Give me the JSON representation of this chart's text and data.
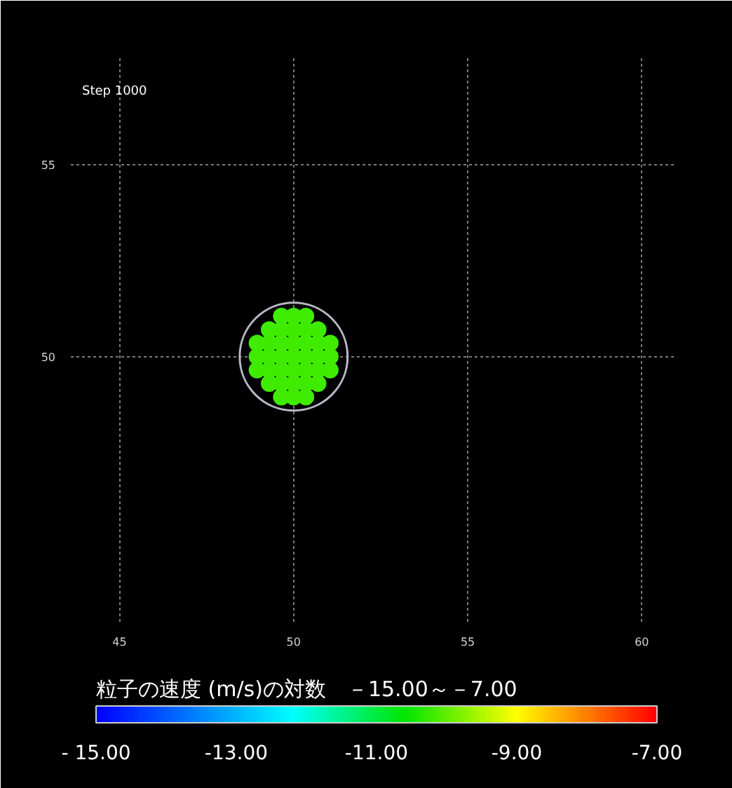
{
  "chart_data": {
    "type": "scatter",
    "annotations": [
      "Step 1000"
    ],
    "clabel": "粒子の速度 (m/s)の対数　－15.00～－7.00",
    "clim": [
      -15,
      -7
    ],
    "cticks": [
      {
        "value": -15,
        "label": "- 15.00"
      },
      {
        "value": -13,
        "label": "-13.00"
      },
      {
        "value": -11,
        "label": "-11.00"
      },
      {
        "value": -9,
        "label": "-9.00"
      },
      {
        "value": -7,
        "label": "-7.00"
      }
    ],
    "xlim": [
      43.6,
      61
    ],
    "ylim": [
      43.1,
      57.8
    ],
    "xticks": [
      45,
      50,
      55,
      60
    ],
    "yticks": [
      50,
      55
    ],
    "grid": true,
    "marker": "circle",
    "series": [
      {
        "x": [
          48.95,
          49.3,
          49.65,
          50,
          50.35,
          50.7,
          51.05,
          48.95,
          49.3,
          49.65,
          50,
          50.35,
          50.7,
          51.05,
          48.95,
          49.3,
          49.65,
          50,
          50.35,
          50.7,
          51.05,
          49.3,
          49.65,
          50,
          50.35,
          50.7,
          49.3,
          49.65,
          50,
          50.35,
          50.7,
          49.65,
          50,
          50.35,
          49.65,
          50,
          50.35
        ],
        "values": [
          50,
          50,
          50,
          50,
          50,
          50,
          50,
          50.35,
          50.35,
          50.35,
          50.35,
          50.35,
          50.35,
          50.35,
          49.65,
          49.65,
          49.65,
          49.65,
          49.65,
          49.65,
          49.65,
          50.7,
          50.7,
          50.7,
          50.7,
          50.7,
          49.3,
          49.3,
          49.3,
          49.3,
          49.3,
          51.05,
          51.05,
          51.05,
          48.95,
          48.95,
          48.95
        ],
        "cvalues": [
          -10.2,
          -10.2,
          -10.2,
          -10.2,
          -10.2,
          -10.2,
          -10.2,
          -10.2,
          -10.2,
          -10.2,
          -10.2,
          -10.2,
          -10.2,
          -10.2,
          -10.2,
          -10.2,
          -10.2,
          -10.2,
          -10.2,
          -10.2,
          -10.2,
          -10.2,
          -10.2,
          -10.2,
          -10.2,
          -10.2,
          -10.2,
          -10.2,
          -10.2,
          -10.2,
          -10.2,
          -10.2,
          -10.2,
          -10.2,
          -10.2,
          -10.2,
          -10.2
        ]
      }
    ]
  }
}
